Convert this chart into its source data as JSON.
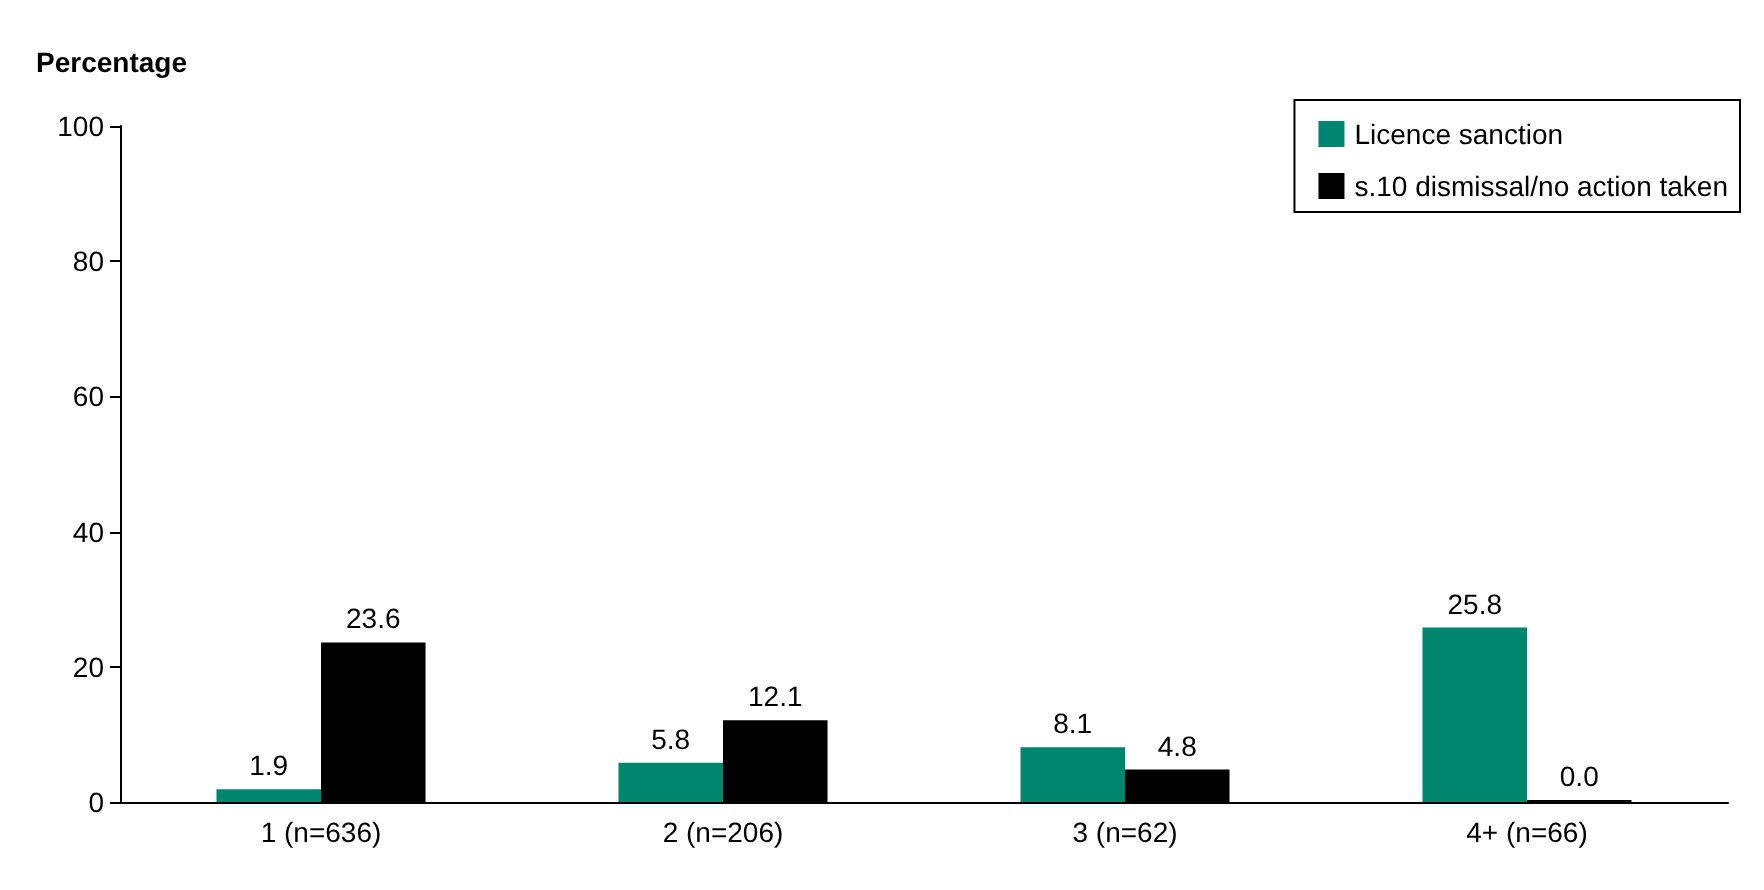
{
  "chart_data": {
    "type": "bar",
    "ylabel": "Percentage",
    "categories": [
      "1 (n=636)",
      "2 (n=206)",
      "3 (n=62)",
      "4+ (n=66)"
    ],
    "series": [
      {
        "name": "Licence sanction",
        "color": "#00866e",
        "values": [
          1.9,
          5.8,
          8.1,
          25.8
        ],
        "value_labels": [
          "1.9",
          "5.8",
          "8.1",
          "25.8"
        ]
      },
      {
        "name": "s.10 dismissal/no action taken",
        "color": "#000000",
        "values": [
          23.6,
          12.1,
          4.8,
          0
        ],
        "value_labels": [
          "23.6",
          "12.1",
          "4.8",
          "0.0"
        ]
      }
    ],
    "ylim": [
      0,
      100
    ],
    "yticks": [
      0,
      20,
      40,
      60,
      80,
      100
    ],
    "grid": false,
    "legend": "top right"
  }
}
